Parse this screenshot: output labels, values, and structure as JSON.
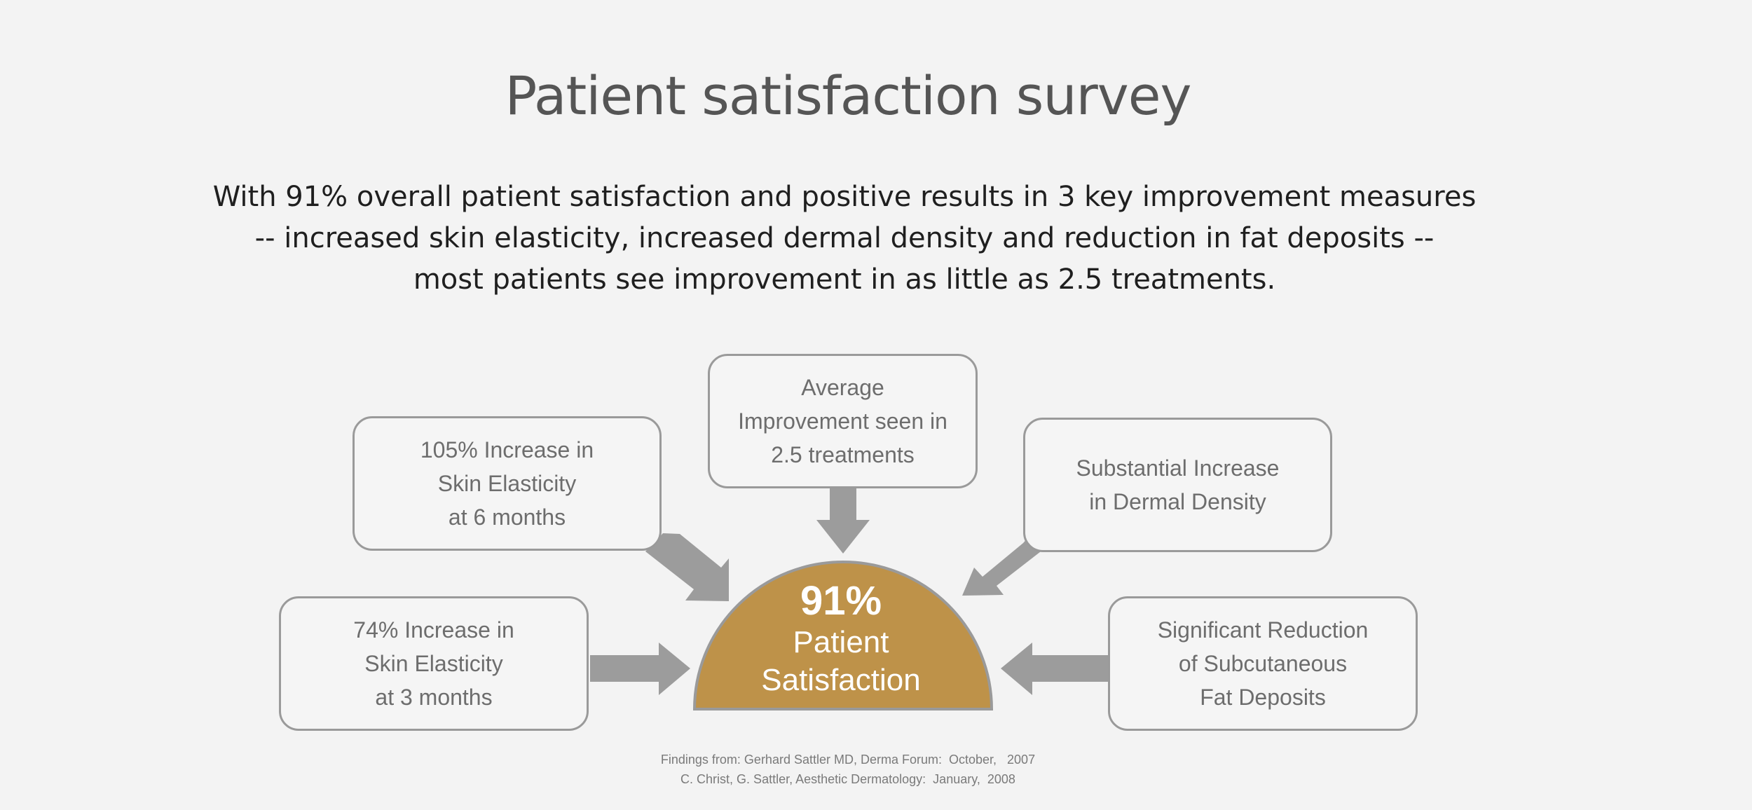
{
  "title": "Patient satisfaction survey",
  "intro": {
    "line1": "With 91% overall patient satisfaction and positive results in 3 key improvement measures",
    "line2": "-- increased skin elasticity, increased dermal density and reduction in fat deposits --",
    "line3": "most patients see improvement in as little as 2.5 treatments."
  },
  "colors": {
    "accent": "#be9249",
    "box_border": "#9a9a9a",
    "arrow": "#9c9c9c",
    "background": "#f3f3f3"
  },
  "center": {
    "percent": "91%",
    "line1": "Patient",
    "line2": "Satisfaction"
  },
  "boxes": {
    "average": {
      "line1": "Average",
      "line2": "Improvement seen in",
      "line3": "2.5 treatments"
    },
    "elasticity_6m": {
      "line1": "105% Increase in",
      "line2": "Skin Elasticity",
      "line3": "at 6 months"
    },
    "dermal_density": {
      "line1": "Substantial Increase",
      "line2": "in Dermal Density"
    },
    "elasticity_3m": {
      "line1": "74% Increase in",
      "line2": "Skin Elasticity",
      "line3": "at 3 months"
    },
    "fat_deposits": {
      "line1": "Significant Reduction",
      "line2": "of Subcutaneous",
      "line3": "Fat Deposits"
    }
  },
  "footnote": {
    "line1": "Findings from: Gerhard Sattler MD, Derma Forum:  October,   2007",
    "line2": "C. Christ, G. Sattler, Aesthetic Dermatology:  January,  2008"
  }
}
